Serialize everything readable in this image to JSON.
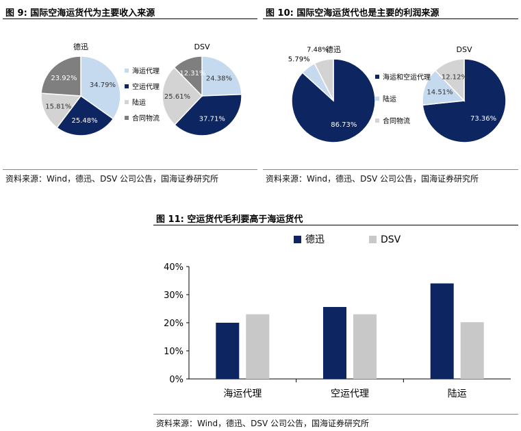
{
  "figures": [
    {
      "title": "图 9:  国际空海运货代为主要收入来源",
      "source": "资料来源：Wind，德迅、DSV 公司公告，国海证券研究所"
    },
    {
      "title": "图 10:  国际空海运货代也是主要的利润来源",
      "source": "资料来源：Wind，德迅、DSV 公司公告，国海证券研究所"
    },
    {
      "title": "图 11:  空运货代毛利要高于海运货代",
      "source": "资料来源：Wind，德迅、DSV 公司公告，国海证券研究所"
    }
  ],
  "chart_data": [
    {
      "type": "pie",
      "labels": [
        "海运代理",
        "空运代理",
        "陆运",
        "合同物流"
      ],
      "colors": [
        "#c5d9ef",
        "#0d2561",
        "#d3d3d3",
        "#7f7f7f"
      ],
      "legend": "between pies",
      "pies": [
        {
          "name": "德迅",
          "values": [
            34.79,
            25.48,
            15.81,
            23.92
          ],
          "labels_text": [
            "34.79%",
            "25.48%",
            "15.81%",
            "23.92%"
          ]
        },
        {
          "name": "DSV",
          "values": [
            24.38,
            37.71,
            25.61,
            12.31
          ],
          "labels_text": [
            "24.38%",
            "37.71%",
            "25.61%",
            "12.31%"
          ]
        }
      ]
    },
    {
      "type": "pie",
      "labels": [
        "海运和空运代理",
        "陆运",
        "合同物流"
      ],
      "colors": [
        "#0d2561",
        "#c5d9ef",
        "#d3d3d3"
      ],
      "legend": "between pies",
      "pies": [
        {
          "name": "德迅",
          "values": [
            86.73,
            5.79,
            7.48
          ],
          "labels_text": [
            "86.73%",
            "5.79%",
            "7.48%"
          ]
        },
        {
          "name": "DSV",
          "values": [
            73.36,
            14.51,
            12.12
          ],
          "labels_text": [
            "73.36%",
            "14.51%",
            "12.12%"
          ]
        }
      ]
    },
    {
      "type": "bar",
      "categories": [
        "海运代理",
        "空运代理",
        "陆运"
      ],
      "series": [
        {
          "name": "德迅",
          "values": [
            20,
            25.6,
            34
          ],
          "color": "#0d2561"
        },
        {
          "name": "DSV",
          "values": [
            23,
            23,
            20.2
          ],
          "color": "#c8c8c8"
        }
      ],
      "ylim": [
        0,
        40
      ],
      "yticks": [
        "0%",
        "10%",
        "20%",
        "30%",
        "40%"
      ],
      "legend": "top",
      "grid": false
    }
  ]
}
